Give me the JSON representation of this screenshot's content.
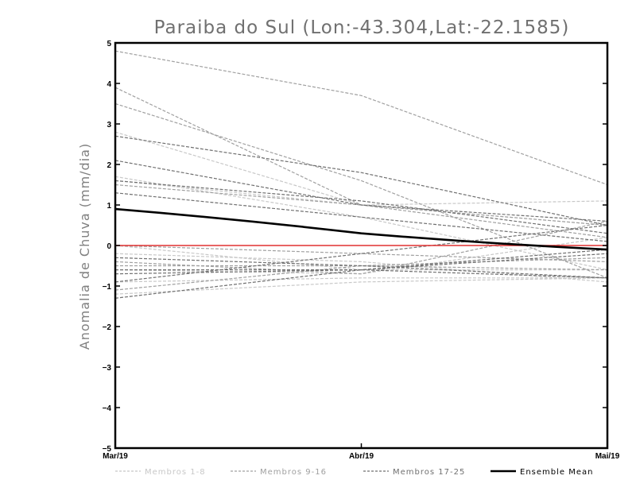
{
  "chart_data": {
    "type": "line",
    "title": "Paraiba do Sul (Lon:-43.304,Lat:-22.1585)",
    "xlabel": "",
    "ylabel": "Anomalia de Chuva (mm/dia)",
    "categories": [
      "Mar/19",
      "Abr/19",
      "Mai/19"
    ],
    "yticks": [
      5,
      4,
      3,
      2,
      1,
      0,
      -1,
      -2,
      -3,
      -4,
      -5
    ],
    "ylim": [
      -5,
      5
    ],
    "grid": false,
    "reference_line": {
      "y": 0,
      "color": "#e03030"
    },
    "legend": {
      "placement": "bottom",
      "entries": [
        {
          "label": "Membros 1-8",
          "color": "#c8c8c8",
          "style": "dashed"
        },
        {
          "label": "Membros 9-16",
          "color": "#a0a0a0",
          "style": "dashed"
        },
        {
          "label": "Membros 17-25",
          "color": "#707070",
          "style": "dashed"
        },
        {
          "label": "Ensemble Mean",
          "color": "#000000",
          "style": "solid"
        }
      ]
    },
    "series": [
      {
        "group": 0,
        "values": [
          2.8,
          1.0,
          0.5
        ]
      },
      {
        "group": 0,
        "values": [
          1.6,
          1.0,
          1.1
        ]
      },
      {
        "group": 0,
        "values": [
          -0.2,
          -0.4,
          -0.9
        ]
      },
      {
        "group": 0,
        "values": [
          -1.2,
          -0.9,
          -0.8
        ]
      },
      {
        "group": 0,
        "values": [
          -0.6,
          -0.7,
          0.2
        ]
      },
      {
        "group": 0,
        "values": [
          0.0,
          -0.6,
          -0.6
        ]
      },
      {
        "group": 0,
        "values": [
          -0.9,
          -0.8,
          -0.8
        ]
      },
      {
        "group": 0,
        "values": [
          1.7,
          0.7,
          -0.6
        ]
      },
      {
        "group": 1,
        "values": [
          4.8,
          3.7,
          1.5
        ]
      },
      {
        "group": 1,
        "values": [
          3.9,
          1.0,
          0.2
        ]
      },
      {
        "group": 1,
        "values": [
          3.5,
          1.6,
          -0.8
        ]
      },
      {
        "group": 1,
        "values": [
          1.5,
          1.0,
          0.5
        ]
      },
      {
        "group": 1,
        "values": [
          -0.4,
          -0.7,
          0.6
        ]
      },
      {
        "group": 1,
        "values": [
          -0.5,
          -0.5,
          -0.3
        ]
      },
      {
        "group": 1,
        "values": [
          -1.1,
          -0.5,
          -0.6
        ]
      },
      {
        "group": 1,
        "values": [
          0.0,
          -0.2,
          -0.4
        ]
      },
      {
        "group": 2,
        "values": [
          2.7,
          1.8,
          0.5
        ]
      },
      {
        "group": 2,
        "values": [
          2.1,
          1.0,
          0.6
        ]
      },
      {
        "group": 2,
        "values": [
          1.6,
          1.1,
          0.3
        ]
      },
      {
        "group": 2,
        "values": [
          1.3,
          0.7,
          0.1
        ]
      },
      {
        "group": 2,
        "values": [
          -0.3,
          -0.5,
          -0.8
        ]
      },
      {
        "group": 2,
        "values": [
          -0.7,
          -0.6,
          -0.2
        ]
      },
      {
        "group": 2,
        "values": [
          -0.9,
          -0.2,
          0.5
        ]
      },
      {
        "group": 2,
        "values": [
          -1.3,
          -0.6,
          -0.8
        ]
      },
      {
        "group": 2,
        "values": [
          -0.6,
          -0.6,
          -0.1
        ]
      }
    ],
    "ensemble_mean": {
      "name": "Ensemble Mean",
      "values": [
        0.9,
        0.3,
        -0.1
      ]
    }
  }
}
